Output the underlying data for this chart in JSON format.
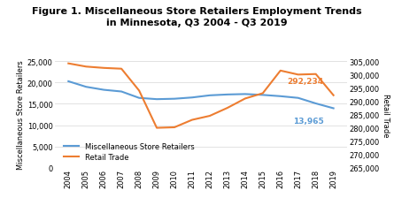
{
  "title_line1": "Figure 1. Miscellaneous Store Retailers Employment Trends",
  "title_line2": "in Minnesota, Q3 2004 - Q3 2019",
  "years": [
    2004,
    2005,
    2006,
    2007,
    2008,
    2009,
    2010,
    2011,
    2012,
    2013,
    2014,
    2015,
    2016,
    2017,
    2018,
    2019
  ],
  "misc_retailers": [
    20300,
    19000,
    18300,
    17900,
    16400,
    16100,
    16200,
    16500,
    17000,
    17200,
    17300,
    17100,
    16800,
    16400,
    15100,
    13965
  ],
  "retail_trade": [
    304200,
    303000,
    302500,
    302200,
    294000,
    280000,
    280200,
    283000,
    284500,
    287500,
    291000,
    293000,
    301500,
    300000,
    300200,
    292234
  ],
  "misc_color": "#5B9BD5",
  "retail_color": "#ED7D31",
  "ylabel_left": "Miscellaneous Store Retailers",
  "ylabel_right": "Retail Trade",
  "ylim_left": [
    0,
    25000
  ],
  "ylim_right": [
    265000,
    305000
  ],
  "yticks_left": [
    0,
    5000,
    10000,
    15000,
    20000,
    25000
  ],
  "yticks_right": [
    265000,
    270000,
    275000,
    280000,
    285000,
    290000,
    295000,
    300000,
    305000
  ],
  "annotation_misc": "13,965",
  "annotation_retail": "292,234",
  "misc_annot_color": "#5B9BD5",
  "retail_annot_color": "#ED7D31",
  "legend_misc": "Miscellaneous Store Retailers",
  "legend_retail": "Retail Trade",
  "bg_color": "#FFFFFF",
  "grid_color": "#DDDDDD",
  "title_fontsize": 8.0,
  "title_fontweight": "bold",
  "ylabel_fontsize": 6.0,
  "tick_fontsize": 6.0,
  "annot_fontsize": 6.5,
  "legend_fontsize": 6.0
}
